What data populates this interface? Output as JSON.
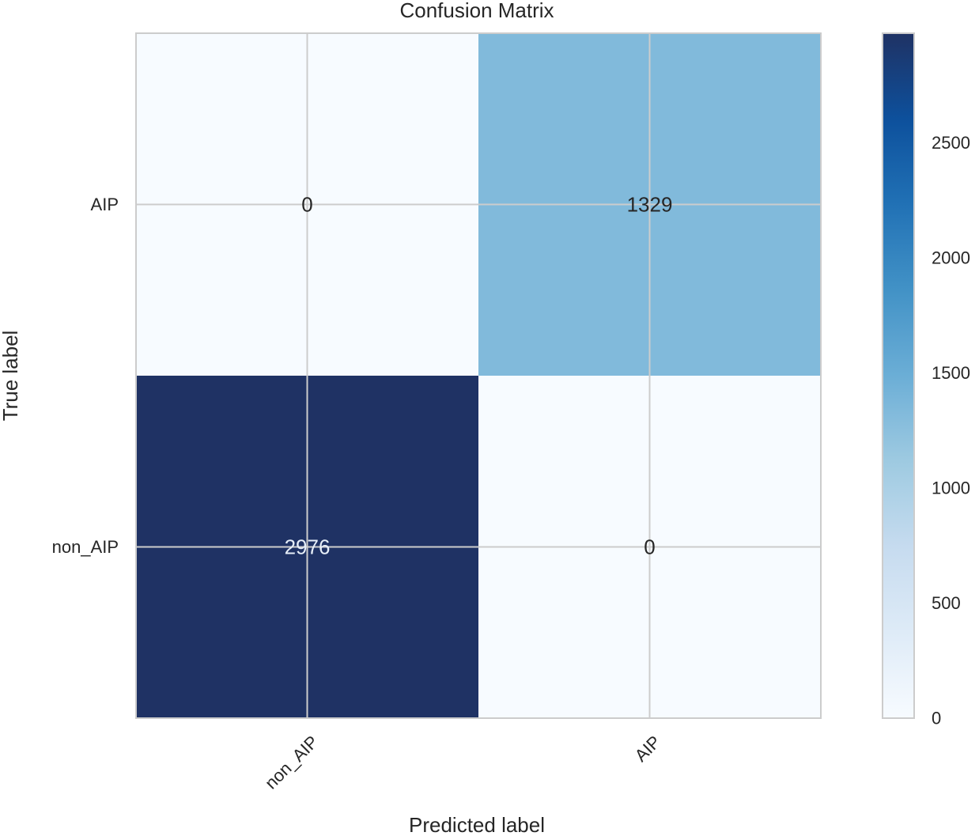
{
  "chart_data": {
    "type": "heatmap",
    "title": "Confusion Matrix",
    "xlabel": "Predicted label",
    "ylabel": "True label",
    "rows": [
      "AIP",
      "non_AIP"
    ],
    "columns": [
      "non_AIP",
      "AIP"
    ],
    "values": [
      [
        0,
        1329
      ],
      [
        2976,
        0
      ]
    ],
    "value_labels": [
      [
        "0",
        "1329"
      ],
      [
        "2976",
        "0"
      ]
    ],
    "colormap": "Blues",
    "color_range": [
      0,
      2976
    ],
    "colorbar": {
      "ticks": [
        0,
        500,
        1000,
        1500,
        2000,
        2500
      ],
      "tick_labels": [
        "0",
        "500",
        "1000",
        "1500",
        "2000",
        "2500"
      ]
    },
    "grid": true,
    "colors": {
      "low": "#f7fbff",
      "high": "#1f3264",
      "grid": "#cccccc",
      "text_dark": "#262626",
      "text_light": "#e6eef8"
    }
  }
}
